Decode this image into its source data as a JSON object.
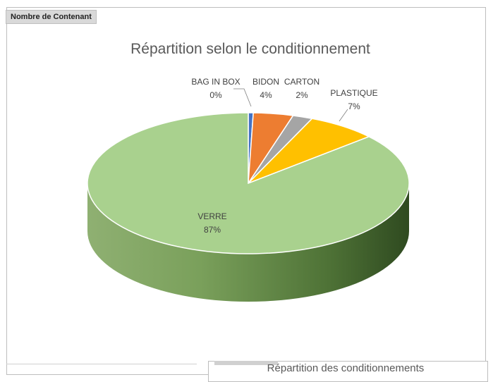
{
  "field_button": "Nombre de Contenant",
  "chart_data": {
    "type": "pie",
    "title": "Répartition selon le conditionnement",
    "categories": [
      "BAG IN BOX",
      "BIDON",
      "CARTON",
      "PLASTIQUE",
      "VERRE"
    ],
    "values": [
      0.5,
      4,
      2,
      7,
      86.5
    ],
    "percent_labels": [
      "0%",
      "4%",
      "2%",
      "7%",
      "87%"
    ],
    "colors": [
      "#4472c4",
      "#ed7d31",
      "#a5a5a5",
      "#ffc000",
      "#a9d18e"
    ],
    "style": "3d-pie"
  },
  "next_chart": {
    "title": "Répartition des conditionnements"
  }
}
